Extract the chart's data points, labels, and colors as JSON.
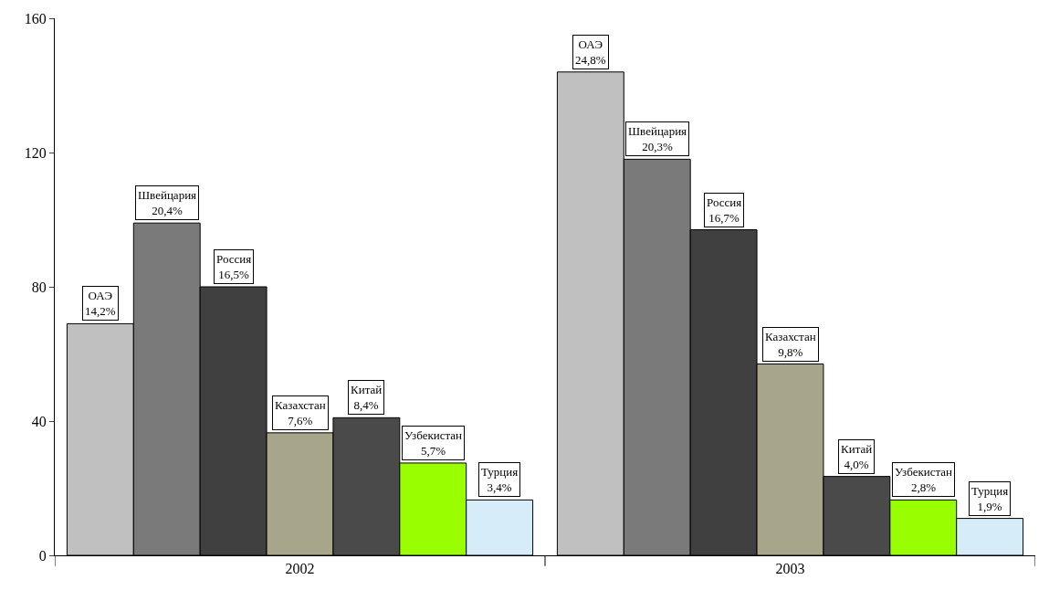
{
  "chart_data": {
    "type": "bar",
    "categories": [
      "2002",
      "2003"
    ],
    "series": [
      {
        "name": "ОАЭ",
        "color": "#c0c0c0",
        "values": [
          69,
          144
        ]
      },
      {
        "name": "Швейцария",
        "color": "#7a7a7a",
        "values": [
          99,
          118
        ]
      },
      {
        "name": "Россия",
        "color": "#404040",
        "values": [
          80,
          97
        ]
      },
      {
        "name": "Казахстан",
        "color": "#a8a68a",
        "values": [
          36.5,
          57
        ]
      },
      {
        "name": "Китай",
        "color": "#4a4a4a",
        "values": [
          41,
          23.5
        ]
      },
      {
        "name": "Узбекистан",
        "color": "#99ff00",
        "values": [
          27.5,
          16.5
        ]
      },
      {
        "name": "Турция",
        "color": "#d6ecf8",
        "values": [
          16.5,
          11
        ]
      }
    ],
    "annotations": [
      "14,2%",
      "24,8%",
      "20,4%",
      "20,3%",
      "16,5%",
      "16,7%",
      "7,6%",
      "9,8%",
      "8,4%",
      "4,0%",
      "5,7%",
      "2,8%",
      "3,4%",
      "1,9%"
    ],
    "ylim": [
      0,
      160
    ],
    "yticks": [
      0,
      40,
      80,
      120,
      160
    ],
    "legend": false
  }
}
